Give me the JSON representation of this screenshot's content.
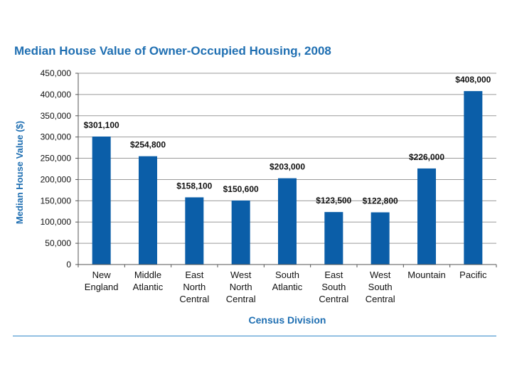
{
  "chart_data": {
    "type": "bar",
    "title": "Median House Value of Owner-Occupied Housing, 2008",
    "xlabel": "Census Division",
    "ylabel": "Median House Value ($)",
    "ylim": [
      0,
      450000
    ],
    "yticks": [
      "0",
      "50,000",
      "100,000",
      "150,000",
      "200,000",
      "250,000",
      "300,000",
      "350,000",
      "400,000",
      "450,000"
    ],
    "ytick_values": [
      0,
      50000,
      100000,
      150000,
      200000,
      250000,
      300000,
      350000,
      400000,
      450000
    ],
    "grid": true,
    "categories": [
      [
        "New",
        "England"
      ],
      [
        "Middle",
        "Atlantic"
      ],
      [
        "East",
        "North",
        "Central"
      ],
      [
        "West",
        "North",
        "Central"
      ],
      [
        "South",
        "Atlantic"
      ],
      [
        "East",
        "South",
        "Central"
      ],
      [
        "West",
        "South",
        "Central"
      ],
      [
        "Mountain"
      ],
      [
        "Pacific"
      ]
    ],
    "values": [
      301100,
      254800,
      158100,
      150600,
      203000,
      123500,
      122800,
      226000,
      408000
    ],
    "data_labels": [
      "$301,100",
      "$254,800",
      "$158,100",
      "$150,600",
      "$203,000",
      "$123,500",
      "$122,800",
      "$226,000",
      "$408,000"
    ],
    "colors": {
      "bar": "#0b5ea8",
      "title": "#1f6fb2",
      "grid": "#9a9a9a",
      "axis": "#555555"
    }
  }
}
